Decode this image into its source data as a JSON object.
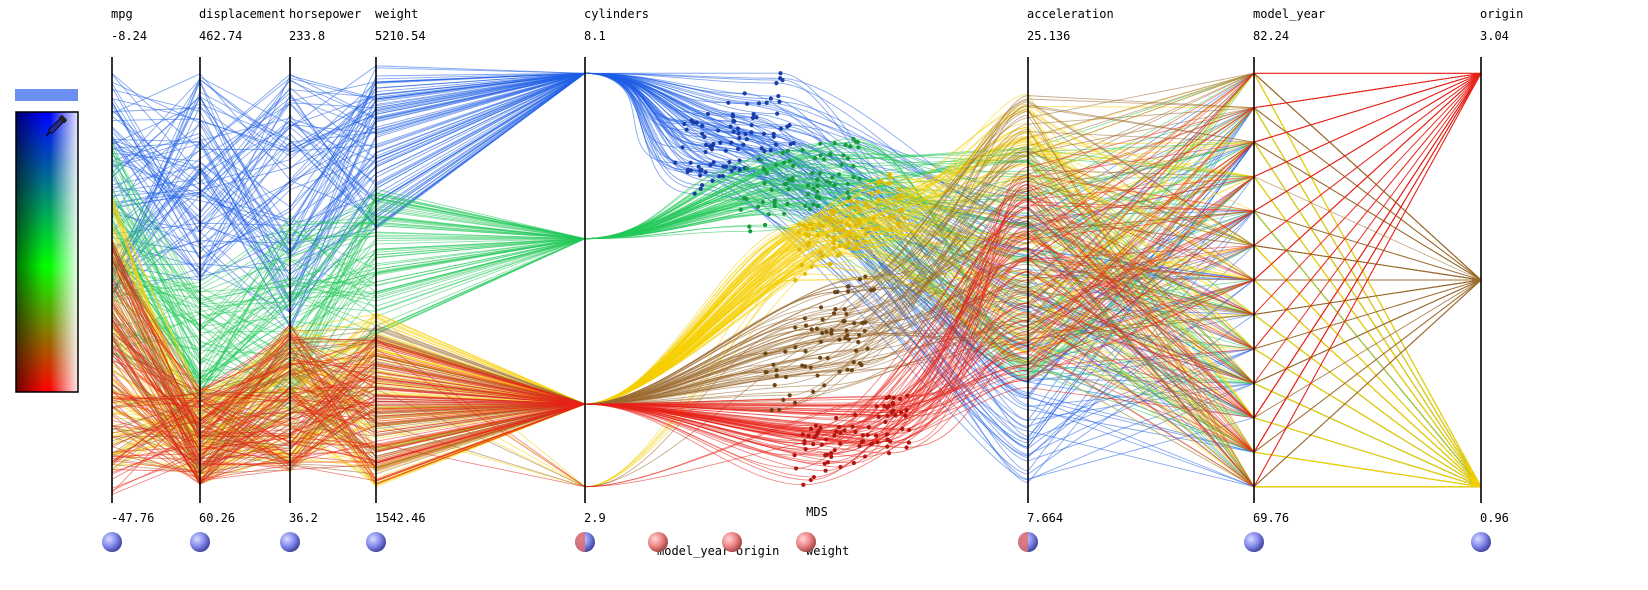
{
  "chart_data": {
    "type": "parallel-coordinates",
    "title": "",
    "axes": [
      {
        "name": "mpg",
        "max_label": "-8.24",
        "min_label": "-47.76",
        "max": -8.24,
        "min": -47.76
      },
      {
        "name": "displacement",
        "max_label": "462.74",
        "min_label": "60.26",
        "max": 462.74,
        "min": 60.26
      },
      {
        "name": "horsepower",
        "max_label": "233.8",
        "min_label": "36.2",
        "max": 233.8,
        "min": 36.2
      },
      {
        "name": "weight",
        "max_label": "5210.54",
        "min_label": "1542.46",
        "max": 5210.54,
        "min": 1542.46
      },
      {
        "name": "cylinders",
        "max_label": "8.1",
        "min_label": "2.9",
        "max": 8.1,
        "min": 2.9
      },
      {
        "name": "acceleration",
        "max_label": "25.136",
        "min_label": "7.664",
        "max": 25.136,
        "min": 7.664
      },
      {
        "name": "model_year",
        "max_label": "82.24",
        "min_label": "69.76",
        "max": 82.24,
        "min": 69.76
      },
      {
        "name": "origin",
        "max_label": "3.04",
        "min_label": "0.96",
        "max": 3.04,
        "min": 0.96
      }
    ],
    "mds": {
      "label": "MDS",
      "dimension_labels": [
        "model_year",
        "origin",
        "weight"
      ]
    },
    "cylinder_levels": [
      8,
      6,
      4,
      3
    ],
    "origin_levels": [
      3,
      2,
      1
    ],
    "model_year_levels": [
      70,
      71,
      72,
      73,
      74,
      75,
      76,
      77,
      78,
      79,
      80,
      81,
      82
    ],
    "groups": [
      {
        "color": "#1f5ee6",
        "cylinders": 8,
        "mpg": [
          -30,
          -8.24
        ],
        "weight": [
          3800,
          5210
        ],
        "acceleration": [
          8,
          20
        ],
        "origin": 1,
        "mds_cluster": "top-left"
      },
      {
        "color": "#22c85a",
        "cylinders": 6,
        "mpg": [
          -35,
          -15
        ],
        "weight": [
          2900,
          4200
        ],
        "acceleration": [
          12,
          22
        ],
        "origin": 1,
        "mds_cluster": "upper-mid"
      },
      {
        "color": "#f5d000",
        "cylinders": 4,
        "mpg": [
          -46,
          -20
        ],
        "weight": [
          1600,
          3100
        ],
        "acceleration": [
          13,
          24
        ],
        "origin": 1,
        "mds_cluster": "diagonal-band"
      },
      {
        "color": "#9a6a2e",
        "cylinders": 4,
        "mpg": [
          -46,
          -24
        ],
        "weight": [
          1700,
          3000
        ],
        "acceleration": [
          13,
          24
        ],
        "origin": 2,
        "mds_cluster": "lower-mid"
      },
      {
        "color": "#e8231a",
        "cylinders": 4,
        "mpg": [
          -47.76,
          -24
        ],
        "weight": [
          1600,
          2900
        ],
        "acceleration": [
          12,
          21
        ],
        "origin": 3,
        "mds_cluster": "bottom"
      }
    ]
  },
  "legend": {
    "accent_color": "#6a8ff0",
    "gradient_colors": [
      "#0000ff",
      "#00ff00",
      "#ff0000",
      "#000000",
      "#ffffff"
    ],
    "picker_icon": "eyedropper-icon"
  },
  "controls": {
    "axis_handle_color": "#8a8ff0",
    "pie_handle_colors": [
      "#e05a5a",
      "#7a8ae8"
    ],
    "mds_handle_color": "#f08a8a"
  }
}
